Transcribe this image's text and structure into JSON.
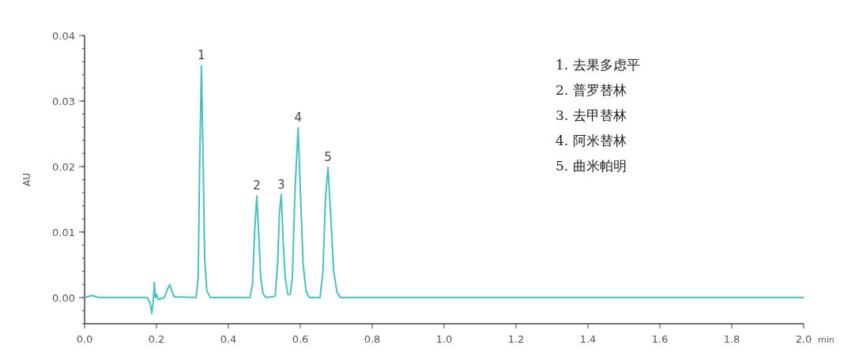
{
  "chart_data": {
    "type": "line",
    "ylabel": "AU",
    "xlabel": "min",
    "xlim": [
      0,
      2
    ],
    "ylim": [
      -0.004,
      0.04
    ],
    "xticks": [
      {
        "value": 0,
        "label": "0.0"
      },
      {
        "value": 0.2,
        "label": "0.2"
      },
      {
        "value": 0.4,
        "label": "0.4"
      },
      {
        "value": 0.6,
        "label": "0.6"
      },
      {
        "value": 0.8,
        "label": "0.8"
      },
      {
        "value": 1.0,
        "label": "1.0"
      },
      {
        "value": 1.2,
        "label": "1.2"
      },
      {
        "value": 1.4,
        "label": "1.4"
      },
      {
        "value": 1.6,
        "label": "1.6"
      },
      {
        "value": 1.8,
        "label": "1.8"
      },
      {
        "value": 2.0,
        "label": "2.0"
      }
    ],
    "yticks": [
      {
        "value": 0,
        "label": "0.00"
      },
      {
        "value": 0.01,
        "label": "0.01"
      },
      {
        "value": 0.02,
        "label": "0.02"
      },
      {
        "value": 0.03,
        "label": "0.03"
      },
      {
        "value": 0.04,
        "label": "0.04"
      }
    ],
    "grid": false,
    "marker": "none",
    "line_style": "solid",
    "series": [
      {
        "color": "#4bbfbf",
        "x": [
          0,
          0.02,
          0.04,
          0.175,
          0.183,
          0.187,
          0.191,
          0.194,
          0.197,
          0.2,
          0.205,
          0.222,
          0.23,
          0.237,
          0.244,
          0.25,
          0.31,
          0.316,
          0.32,
          0.325,
          0.33,
          0.334,
          0.34,
          0.35,
          0.46,
          0.467,
          0.473,
          0.479,
          0.485,
          0.49,
          0.497,
          0.505,
          0.53,
          0.537,
          0.542,
          0.547,
          0.553,
          0.558,
          0.565,
          0.572,
          0.578,
          0.585,
          0.594,
          0.601,
          0.608,
          0.616,
          0.625,
          0.655,
          0.663,
          0.67,
          0.677,
          0.685,
          0.693,
          0.702,
          0.712,
          2.0
        ],
        "values": [
          0,
          0.0003,
          0,
          0,
          -0.001,
          -0.0024,
          -0.0008,
          0.0023,
          0,
          0.0005,
          -0.0003,
          0,
          0.0012,
          0.002,
          0.0008,
          0.0001,
          0,
          0.003,
          0.02,
          0.0354,
          0.02,
          0.006,
          0.001,
          0,
          0,
          0.002,
          0.01,
          0.0155,
          0.009,
          0.003,
          0.0005,
          0,
          0.0002,
          0.005,
          0.013,
          0.0157,
          0.008,
          0.003,
          0.0005,
          0.0005,
          0.003,
          0.016,
          0.0259,
          0.015,
          0.005,
          0.001,
          0,
          0,
          0.004,
          0.015,
          0.0199,
          0.012,
          0.004,
          0.0008,
          0,
          0
        ]
      }
    ],
    "annotations": [
      {
        "text": "1",
        "x": 0.325,
        "y": 0.0354
      },
      {
        "text": "2",
        "x": 0.479,
        "y": 0.0155
      },
      {
        "text": "3",
        "x": 0.547,
        "y": 0.0157
      },
      {
        "text": "4",
        "x": 0.594,
        "y": 0.0259
      },
      {
        "text": "5",
        "x": 0.677,
        "y": 0.0199
      },
      "1. 去果多虑平",
      "2. 普罗替林",
      "3. 去甲替林",
      "4. 阿米替林",
      "5. 曲米帕明"
    ]
  }
}
